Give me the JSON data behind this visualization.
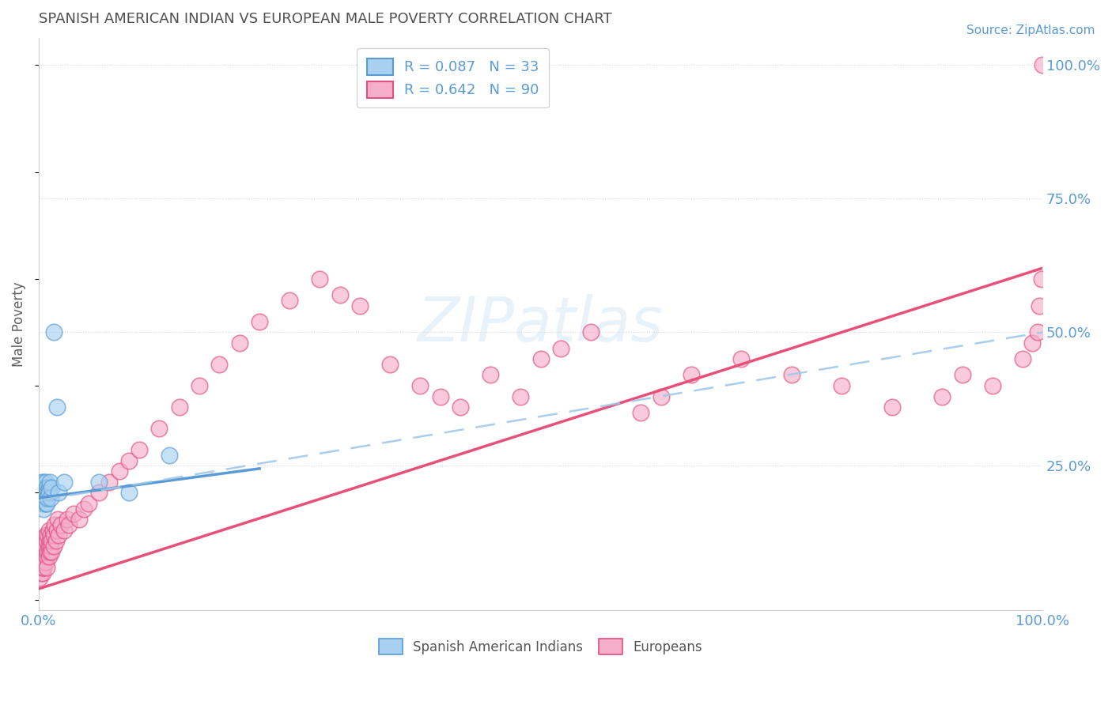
{
  "title": "SPANISH AMERICAN INDIAN VS EUROPEAN MALE POVERTY CORRELATION CHART",
  "source": "Source: ZipAtlas.com",
  "ylabel": "Male Poverty",
  "xlim": [
    0,
    1
  ],
  "ylim": [
    -0.02,
    1.05
  ],
  "yticks": [
    0.0,
    0.25,
    0.5,
    0.75,
    1.0
  ],
  "ytick_labels": [
    "",
    "25.0%",
    "50.0%",
    "75.0%",
    "100.0%"
  ],
  "xtick_labels": [
    "0.0%",
    "100.0%"
  ],
  "color_blue": "#A8D0F0",
  "color_pink": "#F5AECA",
  "color_blue_edge": "#5B9BD5",
  "color_pink_edge": "#E05080",
  "color_blue_line": "#5B9BD5",
  "color_pink_line": "#E8507A",
  "color_dashed": "#A0C8E8",
  "background_color": "#FFFFFF",
  "watermark": "ZIPatlas",
  "title_color": "#505050",
  "axis_label_color": "#606060",
  "tick_color": "#5B9BD5",
  "grid_color": "#CCCCCC",
  "sai_x": [
    0.002,
    0.003,
    0.003,
    0.004,
    0.004,
    0.004,
    0.005,
    0.005,
    0.005,
    0.005,
    0.006,
    0.006,
    0.006,
    0.007,
    0.007,
    0.007,
    0.008,
    0.008,
    0.008,
    0.009,
    0.009,
    0.01,
    0.01,
    0.011,
    0.012,
    0.013,
    0.015,
    0.018,
    0.02,
    0.025,
    0.06,
    0.09,
    0.13
  ],
  "sai_y": [
    0.19,
    0.2,
    0.22,
    0.18,
    0.21,
    0.19,
    0.2,
    0.22,
    0.18,
    0.17,
    0.19,
    0.21,
    0.2,
    0.18,
    0.2,
    0.22,
    0.19,
    0.21,
    0.18,
    0.2,
    0.19,
    0.21,
    0.2,
    0.22,
    0.19,
    0.21,
    0.5,
    0.36,
    0.2,
    0.22,
    0.22,
    0.2,
    0.27
  ],
  "eur_x": [
    0.001,
    0.002,
    0.002,
    0.003,
    0.003,
    0.003,
    0.004,
    0.004,
    0.004,
    0.004,
    0.005,
    0.005,
    0.005,
    0.005,
    0.006,
    0.006,
    0.006,
    0.007,
    0.007,
    0.007,
    0.008,
    0.008,
    0.008,
    0.009,
    0.009,
    0.01,
    0.01,
    0.01,
    0.011,
    0.011,
    0.012,
    0.012,
    0.013,
    0.013,
    0.014,
    0.015,
    0.015,
    0.016,
    0.017,
    0.018,
    0.019,
    0.02,
    0.022,
    0.025,
    0.028,
    0.03,
    0.035,
    0.04,
    0.045,
    0.05,
    0.06,
    0.07,
    0.08,
    0.09,
    0.1,
    0.12,
    0.14,
    0.16,
    0.18,
    0.2,
    0.22,
    0.25,
    0.28,
    0.3,
    0.32,
    0.35,
    0.38,
    0.4,
    0.42,
    0.45,
    0.48,
    0.5,
    0.52,
    0.55,
    0.6,
    0.62,
    0.65,
    0.7,
    0.75,
    0.8,
    0.85,
    0.9,
    0.92,
    0.95,
    0.98,
    0.99,
    0.995,
    0.997,
    0.999,
    1.0
  ],
  "eur_y": [
    0.04,
    0.06,
    0.05,
    0.07,
    0.06,
    0.08,
    0.05,
    0.07,
    0.09,
    0.06,
    0.07,
    0.08,
    0.1,
    0.06,
    0.08,
    0.09,
    0.11,
    0.07,
    0.1,
    0.12,
    0.08,
    0.11,
    0.06,
    0.09,
    0.12,
    0.08,
    0.1,
    0.13,
    0.09,
    0.11,
    0.1,
    0.12,
    0.09,
    0.11,
    0.13,
    0.1,
    0.12,
    0.14,
    0.11,
    0.13,
    0.15,
    0.12,
    0.14,
    0.13,
    0.15,
    0.14,
    0.16,
    0.15,
    0.17,
    0.18,
    0.2,
    0.22,
    0.24,
    0.26,
    0.28,
    0.32,
    0.36,
    0.4,
    0.44,
    0.48,
    0.52,
    0.56,
    0.6,
    0.57,
    0.55,
    0.44,
    0.4,
    0.38,
    0.36,
    0.42,
    0.38,
    0.45,
    0.47,
    0.5,
    0.35,
    0.38,
    0.42,
    0.45,
    0.42,
    0.4,
    0.36,
    0.38,
    0.42,
    0.4,
    0.45,
    0.48,
    0.5,
    0.55,
    0.6,
    1.0
  ],
  "pink_line_x": [
    0.0,
    1.0
  ],
  "pink_line_y": [
    0.02,
    0.62
  ],
  "blue_line_x": [
    0.0,
    0.22
  ],
  "blue_line_y": [
    0.19,
    0.245
  ],
  "dashed_line_x": [
    0.0,
    1.0
  ],
  "dashed_line_y": [
    0.185,
    0.5
  ]
}
